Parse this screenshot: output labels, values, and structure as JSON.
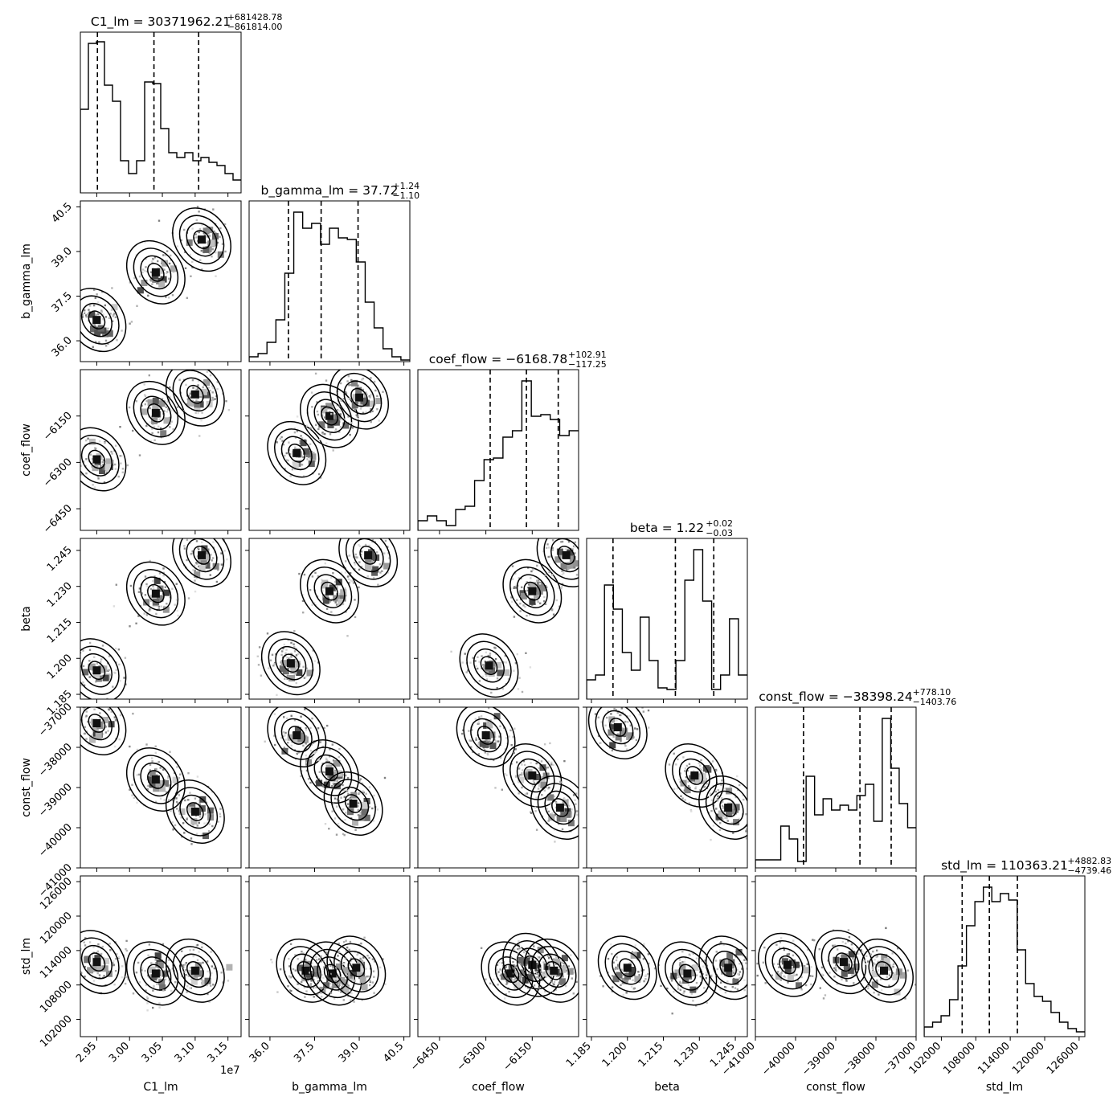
{
  "figure": {
    "exponent_label": "1e7"
  },
  "chart_data": {
    "type": "corner",
    "parameters": [
      {
        "name": "C1_lm",
        "title": {
          "lhs": "C1_lm = 30371962.21",
          "sup": "+681428.78",
          "sub": "−861814.00"
        },
        "range": [
          29250000,
          31700000
        ],
        "ticks": [
          29500000,
          30000000,
          30500000,
          31000000,
          31500000
        ],
        "tick_labels": [
          "2.95",
          "3.00",
          "3.05",
          "3.10",
          "3.15"
        ],
        "quantiles": [
          29510148,
          30371962,
          31053391
        ],
        "hist": [
          0.52,
          0.93,
          0.94,
          0.67,
          0.57,
          0.2,
          0.12,
          0.2,
          0.69,
          0.68,
          0.4,
          0.25,
          0.22,
          0.25,
          0.2,
          0.22,
          0.19,
          0.17,
          0.12,
          0.08
        ]
      },
      {
        "name": "b_gamma_lm",
        "title": {
          "lhs": "b_gamma_lm = 37.72",
          "sup": "+1.24",
          "sub": "−1.10"
        },
        "range": [
          35.3,
          40.7
        ],
        "ticks": [
          36.0,
          37.5,
          39.0,
          40.5
        ],
        "tick_labels": [
          "36.0",
          "37.5",
          "39.0",
          "40.5"
        ],
        "quantiles": [
          36.62,
          37.72,
          38.96
        ],
        "hist": [
          0.03,
          0.05,
          0.12,
          0.26,
          0.55,
          0.93,
          0.83,
          0.86,
          0.73,
          0.83,
          0.77,
          0.76,
          0.62,
          0.37,
          0.21,
          0.08,
          0.03,
          0.01
        ]
      },
      {
        "name": "coef_flow",
        "title": {
          "lhs": "coef_flow = −6168.78",
          "sup": "+102.91",
          "sub": "−117.25"
        },
        "range": [
          -6520,
          -6000
        ],
        "ticks": [
          -6450,
          -6300,
          -6150
        ],
        "tick_labels": [
          "−6450",
          "−6300",
          "−6150"
        ],
        "quantiles": [
          -6286.03,
          -6168.78,
          -6065.87
        ],
        "hist": [
          0.06,
          0.09,
          0.06,
          0.03,
          0.13,
          0.15,
          0.31,
          0.44,
          0.45,
          0.58,
          0.62,
          0.93,
          0.71,
          0.72,
          0.69,
          0.59,
          0.62
        ]
      },
      {
        "name": "beta",
        "title": {
          "lhs": "beta = 1.22",
          "sup": "+0.02",
          "sub": "−0.03"
        },
        "range": [
          1.183,
          1.25
        ],
        "ticks": [
          1.185,
          1.2,
          1.215,
          1.23,
          1.245
        ],
        "tick_labels": [
          "1.185",
          "1.200",
          "1.215",
          "1.230",
          "1.245"
        ],
        "quantiles": [
          1.194,
          1.22,
          1.236
        ],
        "hist": [
          0.12,
          0.15,
          0.71,
          0.56,
          0.29,
          0.18,
          0.51,
          0.24,
          0.07,
          0.06,
          0.24,
          0.74,
          0.93,
          0.61,
          0.06,
          0.15,
          0.5,
          0.15
        ]
      },
      {
        "name": "const_flow",
        "title": {
          "lhs": "const_flow = −38398.24",
          "sup": "+778.10",
          "sub": "−1403.76"
        },
        "range": [
          -41000,
          -37000
        ],
        "ticks": [
          -41000,
          -40000,
          -39000,
          -38000,
          -37000
        ],
        "tick_labels": [
          "−41000",
          "−40000",
          "−39000",
          "−38000",
          "−37000"
        ],
        "quantiles": [
          -39802,
          -38398.24,
          -37620.14
        ],
        "hist": [
          0.05,
          0.05,
          0.05,
          0.26,
          0.18,
          0.04,
          0.57,
          0.33,
          0.43,
          0.36,
          0.39,
          0.36,
          0.45,
          0.52,
          0.29,
          0.93,
          0.62,
          0.4,
          0.25
        ]
      },
      {
        "name": "std_lm",
        "title": {
          "lhs": "std_lm = 110363.21",
          "sup": "+4882.83",
          "sub": "−4739.46"
        },
        "range": [
          99000,
          127000
        ],
        "ticks": [
          102000,
          108000,
          114000,
          120000,
          126000
        ],
        "tick_labels": [
          "102000",
          "108000",
          "114000",
          "120000",
          "126000"
        ],
        "quantiles": [
          105623.75,
          110363.21,
          115246.04
        ],
        "hist": [
          0.06,
          0.09,
          0.13,
          0.23,
          0.44,
          0.69,
          0.84,
          0.93,
          0.84,
          0.89,
          0.85,
          0.54,
          0.33,
          0.25,
          0.22,
          0.15,
          0.09,
          0.05,
          0.03
        ]
      }
    ],
    "pair_centers": {
      "1-0": [
        [
          29500000,
          36.7
        ],
        [
          30400000,
          38.3
        ],
        [
          31100000,
          39.4
        ]
      ],
      "2-0": [
        [
          29500000,
          -6290
        ],
        [
          30400000,
          -6140
        ],
        [
          31000000,
          -6080
        ]
      ],
      "2-1": [
        [
          36.9,
          -6270
        ],
        [
          38.0,
          -6150
        ],
        [
          39.0,
          -6090
        ]
      ],
      "3-0": [
        [
          29500000,
          1.195
        ],
        [
          30400000,
          1.227
        ],
        [
          31100000,
          1.243
        ]
      ],
      "3-1": [
        [
          36.7,
          1.198
        ],
        [
          38.0,
          1.228
        ],
        [
          39.3,
          1.243
        ]
      ],
      "3-2": [
        [
          -6290,
          1.197
        ],
        [
          -6150,
          1.228
        ],
        [
          -6040,
          1.243
        ]
      ],
      "4-0": [
        [
          29500000,
          -37400
        ],
        [
          30400000,
          -38800
        ],
        [
          31000000,
          -39600
        ]
      ],
      "4-1": [
        [
          36.9,
          -37700
        ],
        [
          38.0,
          -38600
        ],
        [
          38.8,
          -39400
        ]
      ],
      "4-2": [
        [
          -6300,
          -37700
        ],
        [
          -6150,
          -38700
        ],
        [
          -6060,
          -39500
        ]
      ],
      "4-3": [
        [
          1.196,
          -37500
        ],
        [
          1.228,
          -38700
        ],
        [
          1.242,
          -39500
        ]
      ],
      "5-0": [
        [
          29500000,
          112000
        ],
        [
          30400000,
          110000
        ],
        [
          31000000,
          110500
        ]
      ],
      "5-1": [
        [
          37.2,
          110500
        ],
        [
          38.1,
          110000
        ],
        [
          38.9,
          111000
        ]
      ],
      "5-2": [
        [
          -6220,
          110000
        ],
        [
          -6150,
          111500
        ],
        [
          -6080,
          110500
        ]
      ],
      "5-3": [
        [
          1.2,
          111000
        ],
        [
          1.225,
          110000
        ],
        [
          1.242,
          111000
        ]
      ],
      "5-4": [
        [
          -40200,
          111500
        ],
        [
          -38800,
          112000
        ],
        [
          -37800,
          110500
        ]
      ]
    },
    "contour_levels": 4,
    "legend": "none",
    "grid": false
  }
}
